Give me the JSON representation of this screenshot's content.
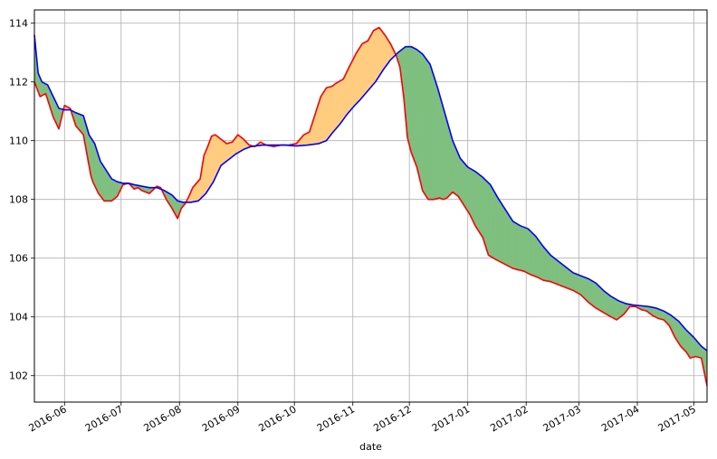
{
  "chart_data": {
    "type": "line",
    "xlabel": "date",
    "ylabel": "",
    "xlim": [
      "2016-05-16",
      "2017-05-08"
    ],
    "ylim": [
      101.1,
      114.45
    ],
    "grid": true,
    "y_ticks": [
      102,
      104,
      106,
      108,
      110,
      112,
      114
    ],
    "x_ticks": [
      "2016-06",
      "2016-07",
      "2016-08",
      "2016-09",
      "2016-10",
      "2016-11",
      "2016-12",
      "2017-01",
      "2017-02",
      "2017-03",
      "2017-04",
      "2017-05"
    ],
    "fill_colors": {
      "red_below_blue": "#7fbf7f",
      "red_above_blue": "#ffcc80"
    },
    "series": [
      {
        "color": "#ff0000",
        "x": [
          "2016-05-16",
          "2016-05-19",
          "2016-05-22",
          "2016-05-26",
          "2016-05-29",
          "2016-06-01",
          "2016-06-04",
          "2016-06-07",
          "2016-06-11",
          "2016-06-13",
          "2016-06-15",
          "2016-06-16",
          "2016-06-19",
          "2016-06-22",
          "2016-06-26",
          "2016-06-29",
          "2016-07-02",
          "2016-07-05",
          "2016-07-08",
          "2016-07-10",
          "2016-07-12",
          "2016-07-16",
          "2016-07-20",
          "2016-07-22",
          "2016-07-25",
          "2016-07-28",
          "2016-07-31",
          "2016-08-02",
          "2016-08-04",
          "2016-08-06",
          "2016-08-08",
          "2016-08-12",
          "2016-08-14",
          "2016-08-16",
          "2016-08-18",
          "2016-08-20",
          "2016-08-23",
          "2016-08-26",
          "2016-08-29",
          "2016-09-01",
          "2016-09-04",
          "2016-09-07",
          "2016-09-10",
          "2016-09-13",
          "2016-09-16",
          "2016-09-20",
          "2016-09-24",
          "2016-09-28",
          "2016-10-02",
          "2016-10-06",
          "2016-10-09",
          "2016-10-12",
          "2016-10-15",
          "2016-10-18",
          "2016-10-21",
          "2016-10-23",
          "2016-10-27",
          "2016-10-30",
          "2016-11-03",
          "2016-11-06",
          "2016-11-09",
          "2016-11-12",
          "2016-11-15",
          "2016-11-18",
          "2016-11-21",
          "2016-11-24",
          "2016-11-26",
          "2016-11-28",
          "2016-11-30",
          "2016-12-02",
          "2016-12-05",
          "2016-12-08",
          "2016-12-11",
          "2016-12-14",
          "2016-12-17",
          "2016-12-19",
          "2016-12-21",
          "2016-12-24",
          "2016-12-27",
          "2016-12-30",
          "2017-01-02",
          "2017-01-05",
          "2017-01-09",
          "2017-01-12",
          "2017-01-16",
          "2017-01-19",
          "2017-01-22",
          "2017-01-25",
          "2017-01-28",
          "2017-01-31",
          "2017-02-03",
          "2017-02-07",
          "2017-02-10",
          "2017-02-14",
          "2017-02-18",
          "2017-02-22",
          "2017-02-26",
          "2017-03-02",
          "2017-03-06",
          "2017-03-10",
          "2017-03-14",
          "2017-03-18",
          "2017-03-21",
          "2017-03-25",
          "2017-03-28",
          "2017-03-31",
          "2017-04-03",
          "2017-04-06",
          "2017-04-09",
          "2017-04-12",
          "2017-04-15",
          "2017-04-18",
          "2017-04-21",
          "2017-04-24",
          "2017-04-27",
          "2017-04-29",
          "2017-05-02",
          "2017-05-05",
          "2017-05-08"
        ],
        "values": [
          112.0,
          111.5,
          111.6,
          110.8,
          110.4,
          111.2,
          111.1,
          110.5,
          110.2,
          109.5,
          108.8,
          108.6,
          108.2,
          107.95,
          107.95,
          108.1,
          108.5,
          108.55,
          108.35,
          108.4,
          108.3,
          108.2,
          108.45,
          108.4,
          108.0,
          107.7,
          107.35,
          107.7,
          107.85,
          108.1,
          108.4,
          108.7,
          109.5,
          109.8,
          110.15,
          110.2,
          110.05,
          109.9,
          109.95,
          110.2,
          110.05,
          109.85,
          109.8,
          109.95,
          109.85,
          109.8,
          109.85,
          109.85,
          109.9,
          110.2,
          110.3,
          110.9,
          111.5,
          111.8,
          111.85,
          111.95,
          112.1,
          112.5,
          113.0,
          113.3,
          113.4,
          113.75,
          113.85,
          113.6,
          113.3,
          112.9,
          112.5,
          111.5,
          110.1,
          109.6,
          109.1,
          108.3,
          108.0,
          108.0,
          108.05,
          108.0,
          108.05,
          108.25,
          108.1,
          107.8,
          107.5,
          107.1,
          106.7,
          106.1,
          105.95,
          105.85,
          105.75,
          105.65,
          105.6,
          105.55,
          105.45,
          105.35,
          105.25,
          105.2,
          105.1,
          105.0,
          104.9,
          104.75,
          104.5,
          104.3,
          104.15,
          104.0,
          103.9,
          104.1,
          104.35,
          104.35,
          104.25,
          104.2,
          104.05,
          103.95,
          103.9,
          103.7,
          103.3,
          103.0,
          102.8,
          102.6,
          102.65,
          102.6,
          101.65
        ]
      },
      {
        "color": "#0000ff",
        "x": [
          "2016-05-16",
          "2016-05-18",
          "2016-05-20",
          "2016-05-23",
          "2016-05-26",
          "2016-05-29",
          "2016-06-01",
          "2016-06-04",
          "2016-06-07",
          "2016-06-11",
          "2016-06-14",
          "2016-06-17",
          "2016-06-20",
          "2016-06-23",
          "2016-06-26",
          "2016-06-29",
          "2016-07-02",
          "2016-07-05",
          "2016-07-08",
          "2016-07-12",
          "2016-07-16",
          "2016-07-20",
          "2016-07-24",
          "2016-07-28",
          "2016-07-31",
          "2016-08-03",
          "2016-08-07",
          "2016-08-11",
          "2016-08-15",
          "2016-08-19",
          "2016-08-23",
          "2016-08-27",
          "2016-08-31",
          "2016-09-04",
          "2016-09-08",
          "2016-09-14",
          "2016-09-20",
          "2016-09-26",
          "2016-10-02",
          "2016-10-08",
          "2016-10-14",
          "2016-10-18",
          "2016-10-21",
          "2016-10-25",
          "2016-10-29",
          "2016-11-02",
          "2016-11-05",
          "2016-11-09",
          "2016-11-13",
          "2016-11-17",
          "2016-11-21",
          "2016-11-25",
          "2016-11-29",
          "2016-12-02",
          "2016-12-05",
          "2016-12-08",
          "2016-12-12",
          "2016-12-16",
          "2016-12-20",
          "2016-12-24",
          "2016-12-28",
          "2017-01-01",
          "2017-01-05",
          "2017-01-09",
          "2017-01-13",
          "2017-01-17",
          "2017-01-21",
          "2017-01-25",
          "2017-01-29",
          "2017-02-02",
          "2017-02-06",
          "2017-02-10",
          "2017-02-14",
          "2017-02-18",
          "2017-02-22",
          "2017-02-26",
          "2017-03-02",
          "2017-03-06",
          "2017-03-10",
          "2017-03-14",
          "2017-03-18",
          "2017-03-22",
          "2017-03-26",
          "2017-03-30",
          "2017-04-03",
          "2017-04-07",
          "2017-04-11",
          "2017-04-15",
          "2017-04-19",
          "2017-04-23",
          "2017-04-27",
          "2017-05-01",
          "2017-05-05",
          "2017-05-08"
        ],
        "values": [
          113.6,
          112.3,
          112.0,
          111.9,
          111.5,
          111.1,
          111.05,
          111.05,
          110.95,
          110.85,
          110.2,
          109.9,
          109.3,
          109.0,
          108.7,
          108.6,
          108.55,
          108.55,
          108.5,
          108.45,
          108.4,
          108.4,
          108.3,
          108.15,
          107.95,
          107.9,
          107.9,
          107.95,
          108.2,
          108.6,
          109.15,
          109.35,
          109.55,
          109.7,
          109.8,
          109.85,
          109.85,
          109.85,
          109.82,
          109.85,
          109.9,
          110.0,
          110.25,
          110.55,
          110.9,
          111.2,
          111.4,
          111.7,
          112.0,
          112.4,
          112.75,
          113.0,
          113.2,
          113.2,
          113.1,
          112.95,
          112.6,
          111.8,
          110.9,
          110.0,
          109.4,
          109.1,
          108.95,
          108.75,
          108.5,
          108.05,
          107.65,
          107.25,
          107.1,
          107.0,
          106.75,
          106.4,
          106.1,
          105.9,
          105.7,
          105.5,
          105.4,
          105.3,
          105.15,
          104.9,
          104.7,
          104.55,
          104.45,
          104.4,
          104.38,
          104.35,
          104.3,
          104.2,
          104.05,
          103.85,
          103.55,
          103.3,
          103.0,
          102.85
        ]
      }
    ]
  }
}
